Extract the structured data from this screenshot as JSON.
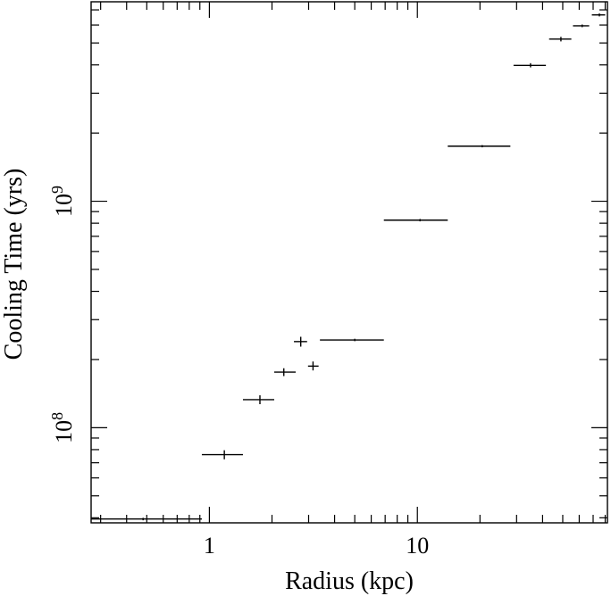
{
  "chart_data": {
    "type": "scatter",
    "xlabel": "Radius (kpc)",
    "ylabel": "Cooling Time (yrs)",
    "xscale": "log",
    "yscale": "log",
    "xlim": [
      0.27,
      82
    ],
    "ylim": [
      38000000.0,
      7600000000.0
    ],
    "x_tick_labels": [
      {
        "value": 1,
        "label": "1"
      },
      {
        "value": 10,
        "label": "10"
      }
    ],
    "y_tick_labels": [
      {
        "value": 100000000.0,
        "base": "10",
        "exp": "8"
      },
      {
        "value": 1000000000.0,
        "base": "10",
        "exp": "9"
      }
    ],
    "grid": false,
    "points": [
      {
        "x": 0.48,
        "x_lo": 0.27,
        "x_hi": 0.92,
        "y": 39500000.0,
        "y_lo": 39000000.0,
        "y_hi": 40000000.0
      },
      {
        "x": 1.18,
        "x_lo": 0.92,
        "x_hi": 1.45,
        "y": 76000000.0,
        "y_lo": 72500000.0,
        "y_hi": 79500000.0
      },
      {
        "x": 1.75,
        "x_lo": 1.45,
        "x_hi": 2.05,
        "y": 133000000.0,
        "y_lo": 127000000.0,
        "y_hi": 139000000.0
      },
      {
        "x": 2.28,
        "x_lo": 2.05,
        "x_hi": 2.6,
        "y": 176000000.0,
        "y_lo": 169000000.0,
        "y_hi": 183000000.0
      },
      {
        "x": 2.75,
        "x_lo": 2.55,
        "x_hi": 2.95,
        "y": 240000000.0,
        "y_lo": 228000000.0,
        "y_hi": 252000000.0
      },
      {
        "x": 3.15,
        "x_lo": 2.98,
        "x_hi": 3.35,
        "y": 187000000.0,
        "y_lo": 179000000.0,
        "y_hi": 196000000.0
      },
      {
        "x": 5.0,
        "x_lo": 3.4,
        "x_hi": 6.9,
        "y": 244000000.0,
        "y_lo": 241000000.0,
        "y_hi": 247000000.0
      },
      {
        "x": 10.3,
        "x_lo": 6.9,
        "x_hi": 14.0,
        "y": 825000000.0,
        "y_lo": 815000000.0,
        "y_hi": 835000000.0
      },
      {
        "x": 20.5,
        "x_lo": 14.0,
        "x_hi": 28.0,
        "y": 1750000000.0,
        "y_lo": 1730000000.0,
        "y_hi": 1770000000.0
      },
      {
        "x": 35.0,
        "x_lo": 29.0,
        "x_hi": 41.5,
        "y": 3980000000.0,
        "y_lo": 3900000000.0,
        "y_hi": 4070000000.0
      },
      {
        "x": 49.0,
        "x_lo": 43.0,
        "x_hi": 55.0,
        "y": 5200000000.0,
        "y_lo": 5080000000.0,
        "y_hi": 5320000000.0
      },
      {
        "x": 62.0,
        "x_lo": 56.0,
        "x_hi": 67.0,
        "y": 5950000000.0,
        "y_lo": 5870000000.0,
        "y_hi": 6030000000.0
      },
      {
        "x": 75.0,
        "x_lo": 69.0,
        "x_hi": 80.0,
        "y": 6650000000.0,
        "y_lo": 6550000000.0,
        "y_hi": 6750000000.0
      }
    ]
  }
}
